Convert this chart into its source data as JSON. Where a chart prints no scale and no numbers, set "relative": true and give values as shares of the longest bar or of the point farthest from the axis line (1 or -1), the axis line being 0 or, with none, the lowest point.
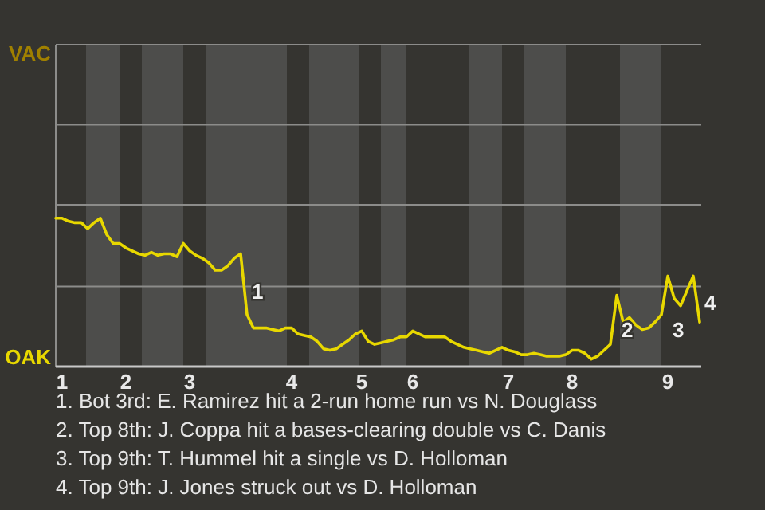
{
  "chart_data": {
    "type": "line",
    "relative": true,
    "categories": [
      null,
      "1",
      null,
      null,
      null,
      null,
      null,
      null,
      null,
      null,
      null,
      "2",
      null,
      null,
      null,
      null,
      null,
      null,
      null,
      null,
      null,
      "3",
      null,
      null,
      null,
      null,
      null,
      null,
      null,
      null,
      null,
      null,
      null,
      null,
      null,
      null,
      null,
      "4",
      null,
      null,
      null,
      null,
      null,
      null,
      null,
      null,
      null,
      null,
      "5",
      null,
      null,
      null,
      null,
      null,
      null,
      null,
      "6",
      null,
      null,
      null,
      null,
      null,
      null,
      null,
      null,
      null,
      null,
      null,
      null,
      null,
      null,
      "7",
      null,
      null,
      null,
      null,
      null,
      null,
      null,
      null,
      null,
      "8",
      null,
      null,
      null,
      null,
      null,
      null,
      null,
      null,
      null,
      null,
      null,
      null,
      null,
      null,
      "9",
      null,
      null,
      null,
      null,
      null
    ],
    "series": [
      {
        "color": "#e8d800",
        "values": [
          1,
          1,
          0.98,
          0.97,
          0.97,
          0.93,
          0.97,
          1,
          0.89,
          0.83,
          0.83,
          0.8,
          0.78,
          0.76,
          0.75,
          0.77,
          0.75,
          0.76,
          0.76,
          0.74,
          0.83,
          0.78,
          0.75,
          0.73,
          0.7,
          0.65,
          0.65,
          0.68,
          0.73,
          0.76,
          0.35,
          0.26,
          0.26,
          0.26,
          0.25,
          0.24,
          0.26,
          0.26,
          0.22,
          0.21,
          0.2,
          0.17,
          0.12,
          0.11,
          0.12,
          0.15,
          0.18,
          0.22,
          0.24,
          0.17,
          0.15,
          0.16,
          0.17,
          0.18,
          0.2,
          0.2,
          0.24,
          0.22,
          0.2,
          0.2,
          0.2,
          0.2,
          0.17,
          0.15,
          0.13,
          0.12,
          0.11,
          0.1,
          0.09,
          0.11,
          0.13,
          0.11,
          0.1,
          0.08,
          0.08,
          0.09,
          0.08,
          0.07,
          0.07,
          0.07,
          0.08,
          0.11,
          0.11,
          0.09,
          0.05,
          0.07,
          0.11,
          0.15,
          0.48,
          0.3,
          0.33,
          0.28,
          0.25,
          0.26,
          0.3,
          0.35,
          0.61,
          0.46,
          0.41,
          0.51,
          0.61,
          0.3
        ]
      }
    ],
    "ref_lines": [
      {
        "axis": "y",
        "value": 0.54,
        "color": "#8c8c8a"
      },
      {
        "axis": "y",
        "value": 1.09,
        "color": "#8c8c8a"
      },
      {
        "axis": "y",
        "value": 1.63,
        "color": "#8c8c8a"
      },
      {
        "axis": "y",
        "value": 2.17,
        "color": "#8c8c8a"
      }
    ],
    "annotations": [
      "VAC",
      "OAK",
      "1",
      "2",
      "3",
      "4",
      "1. Bot 3rd: E. Ramirez hit a 2-run home run vs N. Douglass",
      "2. Top 8th: J. Coppa hit a bases-clearing double vs C. Danis",
      "3. Top 9th: T. Hummel hit a single vs D. Holloman",
      "4. Top 9th: J. Jones struck out vs D. Holloman"
    ]
  }
}
